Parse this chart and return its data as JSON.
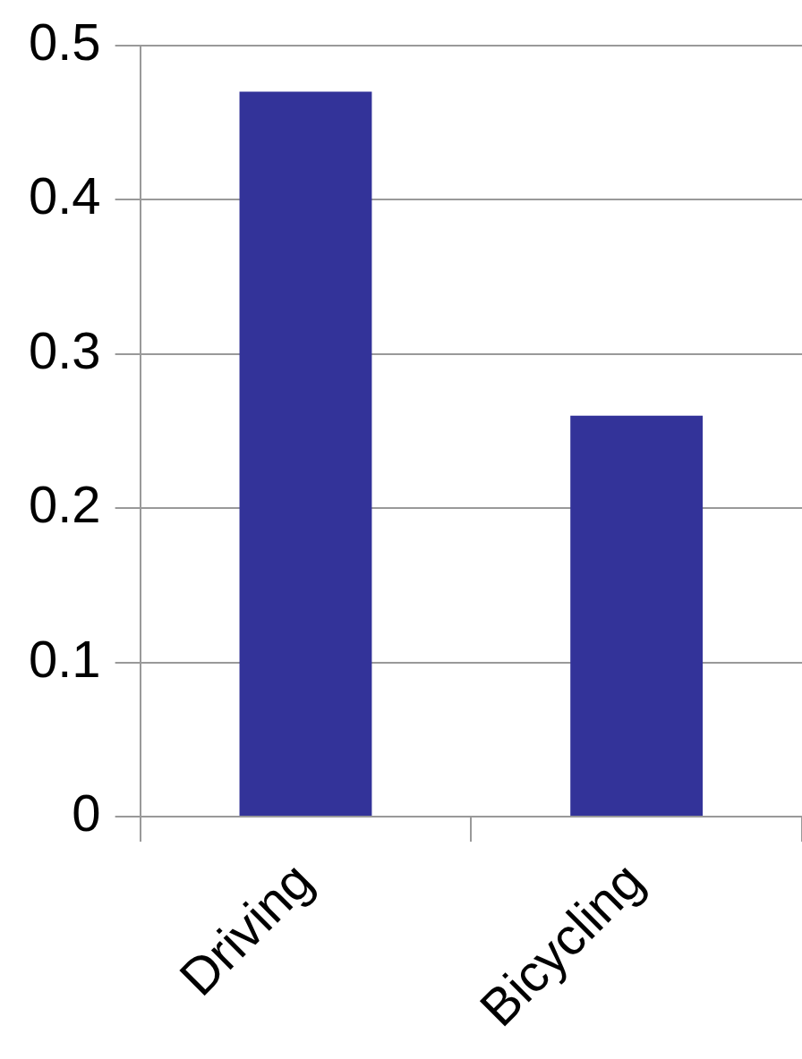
{
  "chart_data": {
    "type": "bar",
    "categories": [
      "Driving",
      "Bicycling"
    ],
    "values": [
      0.47,
      0.26
    ],
    "color": "#333399",
    "ylim": [
      0,
      0.5
    ],
    "yticks": [
      0,
      0.1,
      0.2,
      0.3,
      0.4,
      0.5
    ],
    "grid": "y",
    "legend": false
  }
}
